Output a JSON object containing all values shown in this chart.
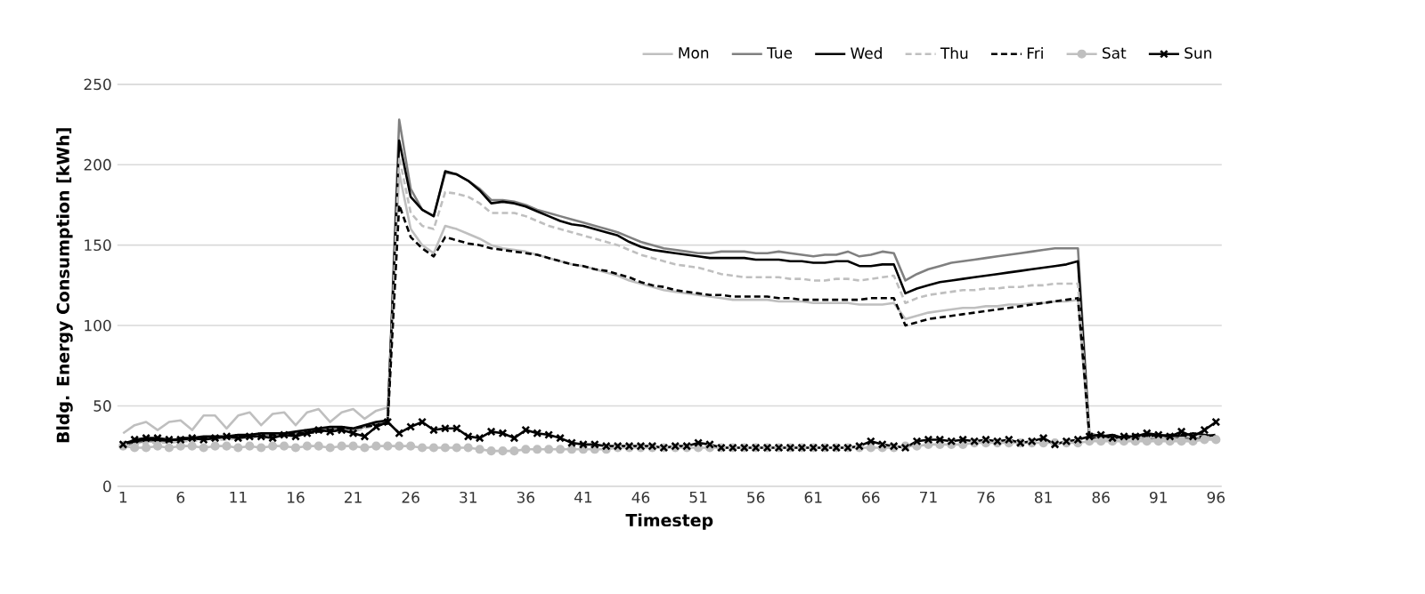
{
  "chart_data": {
    "type": "line",
    "xlabel": "Timestep",
    "ylabel": "Bldg. Energy Consumption [kWh]",
    "x": [
      1,
      2,
      3,
      4,
      5,
      6,
      7,
      8,
      9,
      10,
      11,
      12,
      13,
      14,
      15,
      16,
      17,
      18,
      19,
      20,
      21,
      22,
      23,
      24,
      25,
      26,
      27,
      28,
      29,
      30,
      31,
      32,
      33,
      34,
      35,
      36,
      37,
      38,
      39,
      40,
      41,
      42,
      43,
      44,
      45,
      46,
      47,
      48,
      49,
      50,
      51,
      52,
      53,
      54,
      55,
      56,
      57,
      58,
      59,
      60,
      61,
      62,
      63,
      64,
      65,
      66,
      67,
      68,
      69,
      70,
      71,
      72,
      73,
      74,
      75,
      76,
      77,
      78,
      79,
      80,
      81,
      82,
      83,
      84,
      85,
      86,
      87,
      88,
      89,
      90,
      91,
      92,
      93,
      94,
      95,
      96
    ],
    "xlim": [
      0.5,
      96.5
    ],
    "xticks": [
      1,
      6,
      11,
      16,
      21,
      26,
      31,
      36,
      41,
      46,
      51,
      56,
      61,
      66,
      71,
      76,
      81,
      86,
      91,
      96
    ],
    "ylim": [
      0,
      250
    ],
    "yticks": [
      0,
      50,
      100,
      150,
      200,
      250
    ],
    "grid": "y",
    "legend": "top right",
    "series": [
      {
        "name": "Mon",
        "color": "#bfbfbf",
        "line_style": "solid",
        "marker": "none",
        "values": [
          33,
          38,
          40,
          35,
          40,
          41,
          35,
          44,
          44,
          36,
          44,
          46,
          38,
          45,
          46,
          38,
          46,
          48,
          40,
          46,
          48,
          42,
          47,
          49,
          195,
          160,
          150,
          145,
          162,
          160,
          157,
          154,
          150,
          148,
          147,
          146,
          144,
          142,
          140,
          138,
          137,
          135,
          133,
          131,
          128,
          126,
          124,
          122,
          121,
          120,
          119,
          118,
          117,
          116,
          116,
          116,
          116,
          115,
          115,
          115,
          114,
          114,
          114,
          114,
          113,
          113,
          113,
          114,
          104,
          106,
          108,
          109,
          110,
          111,
          111,
          112,
          112,
          113,
          113,
          114,
          114,
          115,
          115,
          116,
          29,
          30,
          29,
          29,
          30,
          29,
          30,
          29,
          30,
          29,
          30,
          30
        ]
      },
      {
        "name": "Tue",
        "color": "#808080",
        "line_style": "solid",
        "marker": "none",
        "values": [
          25,
          27,
          28,
          28,
          28,
          29,
          29,
          30,
          30,
          30,
          31,
          31,
          32,
          32,
          32,
          33,
          34,
          35,
          36,
          36,
          35,
          37,
          39,
          40,
          228,
          185,
          172,
          168,
          195,
          194,
          190,
          185,
          178,
          178,
          177,
          175,
          172,
          170,
          168,
          166,
          164,
          162,
          160,
          158,
          155,
          152,
          150,
          148,
          147,
          146,
          145,
          145,
          146,
          146,
          146,
          145,
          145,
          146,
          145,
          144,
          143,
          144,
          144,
          146,
          143,
          144,
          146,
          145,
          128,
          132,
          135,
          137,
          139,
          140,
          141,
          142,
          143,
          144,
          145,
          146,
          147,
          148,
          148,
          148,
          33,
          31,
          31,
          30,
          31,
          30,
          30,
          31,
          30,
          30,
          30,
          31
        ]
      },
      {
        "name": "Wed",
        "color": "#000000",
        "line_style": "solid",
        "marker": "none",
        "values": [
          26,
          28,
          29,
          29,
          28,
          30,
          30,
          31,
          31,
          31,
          32,
          32,
          33,
          33,
          33,
          34,
          35,
          36,
          37,
          37,
          36,
          38,
          40,
          41,
          215,
          180,
          172,
          168,
          196,
          194,
          190,
          184,
          176,
          177,
          176,
          174,
          171,
          168,
          165,
          163,
          162,
          160,
          158,
          156,
          152,
          149,
          147,
          146,
          145,
          144,
          143,
          142,
          142,
          142,
          142,
          141,
          141,
          141,
          140,
          140,
          139,
          139,
          140,
          140,
          137,
          137,
          138,
          138,
          120,
          123,
          125,
          127,
          128,
          129,
          130,
          131,
          132,
          133,
          134,
          135,
          136,
          137,
          138,
          140,
          30,
          31,
          32,
          30,
          31,
          32,
          31,
          32,
          31,
          33,
          32,
          31
        ]
      },
      {
        "name": "Thu",
        "color": "#bfbfbf",
        "line_style": "dashed",
        "marker": "none",
        "values": [
          25,
          26,
          27,
          27,
          27,
          28,
          28,
          29,
          29,
          29,
          30,
          30,
          31,
          31,
          31,
          32,
          33,
          34,
          35,
          35,
          34,
          36,
          38,
          39,
          205,
          170,
          162,
          160,
          183,
          182,
          180,
          176,
          170,
          170,
          170,
          168,
          165,
          162,
          160,
          158,
          156,
          154,
          152,
          150,
          147,
          144,
          142,
          140,
          138,
          137,
          136,
          134,
          132,
          131,
          130,
          130,
          130,
          130,
          129,
          129,
          128,
          128,
          129,
          129,
          128,
          129,
          130,
          131,
          114,
          117,
          119,
          120,
          121,
          122,
          122,
          123,
          123,
          124,
          124,
          125,
          125,
          126,
          126,
          126,
          32,
          30,
          30,
          31,
          30,
          31,
          30,
          31,
          30,
          31,
          31,
          30
        ]
      },
      {
        "name": "Fri",
        "color": "#000000",
        "line_style": "dashed",
        "marker": "none",
        "values": [
          27,
          28,
          29,
          29,
          29,
          29,
          30,
          30,
          30,
          31,
          31,
          31,
          31,
          32,
          32,
          33,
          33,
          34,
          35,
          36,
          36,
          37,
          38,
          39,
          175,
          155,
          148,
          143,
          155,
          153,
          151,
          150,
          148,
          147,
          146,
          145,
          144,
          142,
          140,
          138,
          137,
          135,
          134,
          132,
          130,
          127,
          125,
          124,
          122,
          121,
          120,
          119,
          119,
          118,
          118,
          118,
          118,
          117,
          117,
          116,
          116,
          116,
          116,
          116,
          116,
          117,
          117,
          117,
          100,
          102,
          104,
          105,
          106,
          107,
          108,
          109,
          110,
          111,
          112,
          113,
          114,
          115,
          116,
          117,
          31,
          32,
          30,
          31,
          32,
          31,
          32,
          31,
          32,
          30,
          31,
          32
        ]
      },
      {
        "name": "Sat",
        "color": "#bfbfbf",
        "line_style": "solid",
        "marker": "circle",
        "values": [
          25,
          24,
          24,
          25,
          24,
          25,
          25,
          24,
          25,
          25,
          24,
          25,
          24,
          25,
          25,
          24,
          25,
          25,
          24,
          25,
          25,
          24,
          25,
          25,
          25,
          25,
          24,
          24,
          24,
          24,
          24,
          23,
          22,
          22,
          22,
          23,
          23,
          23,
          23,
          23,
          23,
          23,
          23,
          24,
          24,
          24,
          24,
          24,
          24,
          24,
          24,
          24,
          24,
          24,
          24,
          24,
          24,
          24,
          24,
          24,
          24,
          24,
          24,
          24,
          24,
          24,
          24,
          24,
          25,
          25,
          26,
          26,
          26,
          26,
          27,
          27,
          27,
          27,
          27,
          27,
          27,
          27,
          27,
          27,
          28,
          28,
          28,
          28,
          28,
          28,
          28,
          28,
          28,
          28,
          29,
          29
        ]
      },
      {
        "name": "Sun",
        "color": "#000000",
        "line_style": "solid",
        "marker": "cross",
        "values": [
          26,
          29,
          30,
          30,
          29,
          29,
          30,
          29,
          30,
          31,
          30,
          31,
          31,
          30,
          32,
          31,
          33,
          35,
          34,
          35,
          33,
          31,
          37,
          40,
          33,
          37,
          40,
          35,
          36,
          36,
          31,
          30,
          34,
          33,
          30,
          35,
          33,
          32,
          30,
          27,
          26,
          26,
          25,
          25,
          25,
          25,
          25,
          24,
          25,
          25,
          27,
          26,
          24,
          24,
          24,
          24,
          24,
          24,
          24,
          24,
          24,
          24,
          24,
          24,
          25,
          28,
          26,
          25,
          24,
          28,
          29,
          29,
          28,
          29,
          28,
          29,
          28,
          29,
          27,
          28,
          30,
          26,
          28,
          29,
          31,
          32,
          30,
          31,
          31,
          33,
          32,
          31,
          34,
          31,
          35,
          40
        ]
      }
    ]
  }
}
